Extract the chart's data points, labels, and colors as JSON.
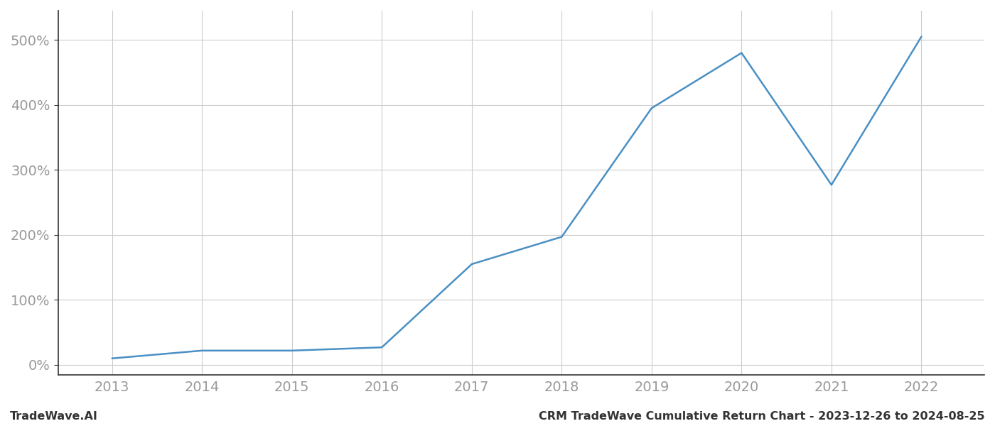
{
  "x_years": [
    2013,
    2014,
    2015,
    2016,
    2017,
    2018,
    2019,
    2020,
    2021,
    2022
  ],
  "y_values": [
    10,
    22,
    22,
    27,
    155,
    197,
    395,
    480,
    277,
    505
  ],
  "line_color": "#4a90c4",
  "line_width": 1.8,
  "background_color": "#ffffff",
  "grid_color": "#cccccc",
  "ylabel_ticks": [
    0,
    100,
    200,
    300,
    400,
    500
  ],
  "ylabel_labels": [
    "0%",
    "100%",
    "200%",
    "300%",
    "400%",
    "500%"
  ],
  "ylim": [
    -15,
    545
  ],
  "xlim": [
    2012.4,
    2022.7
  ],
  "xlabel_ticks": [
    2013,
    2014,
    2015,
    2016,
    2017,
    2018,
    2019,
    2020,
    2021,
    2022
  ],
  "footer_left": "TradeWave.AI",
  "footer_right": "CRM TradeWave Cumulative Return Chart - 2023-12-26 to 2024-08-25",
  "tick_color": "#999999",
  "tick_fontsize": 14,
  "footer_fontsize": 11.5,
  "spine_color": "#333333"
}
